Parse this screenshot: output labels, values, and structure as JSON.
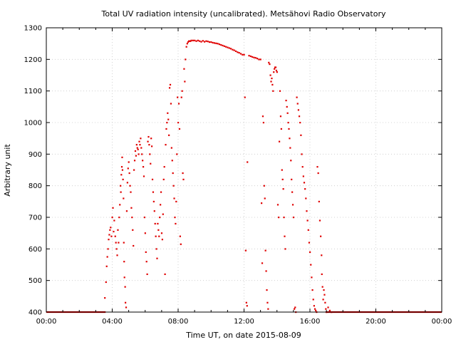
{
  "chart_data": {
    "type": "scatter",
    "title": "Total UV radiation intensity (uncalibrated). Metsähovi Radio Observatory",
    "xlabel": "Time UT, on date 2015-08-09",
    "ylabel": "Arbitrary unit",
    "x_unit": "hours UT",
    "xlim": [
      0,
      24
    ],
    "ylim": [
      400,
      1300
    ],
    "x_ticks": [
      {
        "value": 0,
        "label": "00:00"
      },
      {
        "value": 4,
        "label": "04:00"
      },
      {
        "value": 8,
        "label": "08:00"
      },
      {
        "value": 12,
        "label": "12:00"
      },
      {
        "value": 16,
        "label": "16:00"
      },
      {
        "value": 20,
        "label": "20:00"
      },
      {
        "value": 24,
        "label": "00:00"
      }
    ],
    "y_ticks": [
      {
        "value": 400,
        "label": "400"
      },
      {
        "value": 500,
        "label": "500"
      },
      {
        "value": 600,
        "label": "600"
      },
      {
        "value": 700,
        "label": "700"
      },
      {
        "value": 800,
        "label": "800"
      },
      {
        "value": 900,
        "label": "900"
      },
      {
        "value": 1000,
        "label": "1000"
      },
      {
        "value": 1100,
        "label": "1100"
      },
      {
        "value": 1200,
        "label": "1200"
      },
      {
        "value": 1300,
        "label": "1300"
      }
    ],
    "grid": true,
    "legend": "none",
    "marker_color": "#e00000",
    "series": [
      {
        "baseline_segments": [
          [
            0,
            3.6,
            400
          ],
          [
            16.95,
            24,
            400
          ]
        ],
        "points": [
          [
            3.55,
            445
          ],
          [
            3.62,
            495
          ],
          [
            3.66,
            545
          ],
          [
            3.7,
            575
          ],
          [
            3.74,
            600
          ],
          [
            3.78,
            630
          ],
          [
            3.82,
            645
          ],
          [
            3.86,
            660
          ],
          [
            3.9,
            668
          ],
          [
            3.95,
            640
          ],
          [
            4.0,
            700
          ],
          [
            4.04,
            730
          ],
          [
            4.08,
            655
          ],
          [
            4.12,
            690
          ],
          [
            4.18,
            640
          ],
          [
            4.22,
            620
          ],
          [
            4.26,
            600
          ],
          [
            4.3,
            580
          ],
          [
            4.34,
            660
          ],
          [
            4.38,
            620
          ],
          [
            4.42,
            700
          ],
          [
            4.46,
            740
          ],
          [
            4.5,
            800
          ],
          [
            4.52,
            780
          ],
          [
            4.55,
            835
          ],
          [
            4.58,
            860
          ],
          [
            4.6,
            890
          ],
          [
            4.62,
            850
          ],
          [
            4.65,
            820
          ],
          [
            4.68,
            760
          ],
          [
            4.7,
            620
          ],
          [
            4.72,
            560
          ],
          [
            4.74,
            510
          ],
          [
            4.78,
            480
          ],
          [
            4.8,
            430
          ],
          [
            4.84,
            415
          ],
          [
            4.88,
            720
          ],
          [
            4.92,
            810
          ],
          [
            4.96,
            855
          ],
          [
            5.0,
            875
          ],
          [
            5.04,
            840
          ],
          [
            5.08,
            800
          ],
          [
            5.12,
            780
          ],
          [
            5.16,
            730
          ],
          [
            5.2,
            700
          ],
          [
            5.24,
            660
          ],
          [
            5.28,
            610
          ],
          [
            5.32,
            850
          ],
          [
            5.36,
            880
          ],
          [
            5.4,
            910
          ],
          [
            5.44,
            895
          ],
          [
            5.48,
            930
          ],
          [
            5.52,
            920
          ],
          [
            5.56,
            915
          ],
          [
            5.6,
            900
          ],
          [
            5.64,
            940
          ],
          [
            5.68,
            930
          ],
          [
            5.72,
            950
          ],
          [
            5.76,
            920
          ],
          [
            5.8,
            900
          ],
          [
            5.84,
            880
          ],
          [
            5.88,
            860
          ],
          [
            5.92,
            830
          ],
          [
            5.96,
            700
          ],
          [
            6.0,
            650
          ],
          [
            6.04,
            590
          ],
          [
            6.08,
            560
          ],
          [
            6.12,
            520
          ],
          [
            6.16,
            940
          ],
          [
            6.2,
            955
          ],
          [
            6.24,
            930
          ],
          [
            6.28,
            900
          ],
          [
            6.32,
            870
          ],
          [
            6.36,
            950
          ],
          [
            6.4,
            925
          ],
          [
            6.44,
            820
          ],
          [
            6.48,
            780
          ],
          [
            6.52,
            750
          ],
          [
            6.56,
            720
          ],
          [
            6.6,
            680
          ],
          [
            6.64,
            640
          ],
          [
            6.68,
            600
          ],
          [
            6.72,
            570
          ],
          [
            6.76,
            680
          ],
          [
            6.8,
            660
          ],
          [
            6.84,
            640
          ],
          [
            6.88,
            700
          ],
          [
            6.92,
            740
          ],
          [
            6.96,
            780
          ],
          [
            7.0,
            650
          ],
          [
            7.04,
            630
          ],
          [
            7.08,
            710
          ],
          [
            7.12,
            820
          ],
          [
            7.16,
            860
          ],
          [
            7.2,
            520
          ],
          [
            7.24,
            930
          ],
          [
            7.28,
            980
          ],
          [
            7.32,
            1000
          ],
          [
            7.36,
            1030
          ],
          [
            7.4,
            1010
          ],
          [
            7.44,
            960
          ],
          [
            7.48,
            1110
          ],
          [
            7.52,
            1120
          ],
          [
            7.56,
            1060
          ],
          [
            7.6,
            920
          ],
          [
            7.64,
            880
          ],
          [
            7.68,
            840
          ],
          [
            7.72,
            800
          ],
          [
            7.76,
            760
          ],
          [
            7.8,
            700
          ],
          [
            7.84,
            680
          ],
          [
            7.88,
            750
          ],
          [
            7.92,
            900
          ],
          [
            7.96,
            1080
          ],
          [
            8.0,
            1000
          ],
          [
            8.04,
            1060
          ],
          [
            8.08,
            980
          ],
          [
            8.12,
            640
          ],
          [
            8.16,
            615
          ],
          [
            8.2,
            1080
          ],
          [
            8.24,
            1100
          ],
          [
            8.28,
            840
          ],
          [
            8.32,
            820
          ],
          [
            8.36,
            1170
          ],
          [
            8.4,
            1130
          ],
          [
            8.44,
            1200
          ],
          [
            8.5,
            1240
          ],
          [
            8.55,
            1250
          ],
          [
            8.6,
            1255
          ],
          [
            8.65,
            1258
          ],
          [
            8.7,
            1258
          ],
          [
            8.75,
            1258
          ],
          [
            8.8,
            1260
          ],
          [
            8.9,
            1260
          ],
          [
            9.0,
            1260
          ],
          [
            9.1,
            1258
          ],
          [
            9.2,
            1260
          ],
          [
            9.3,
            1258
          ],
          [
            9.4,
            1256
          ],
          [
            9.5,
            1259
          ],
          [
            9.6,
            1256
          ],
          [
            9.7,
            1258
          ],
          [
            9.8,
            1257
          ],
          [
            9.9,
            1255
          ],
          [
            10.0,
            1255
          ],
          [
            10.1,
            1253
          ],
          [
            10.2,
            1252
          ],
          [
            10.3,
            1251
          ],
          [
            10.4,
            1250
          ],
          [
            10.5,
            1248
          ],
          [
            10.6,
            1246
          ],
          [
            10.7,
            1244
          ],
          [
            10.8,
            1242
          ],
          [
            10.9,
            1240
          ],
          [
            11.0,
            1238
          ],
          [
            11.1,
            1236
          ],
          [
            11.2,
            1234
          ],
          [
            11.3,
            1231
          ],
          [
            11.4,
            1229
          ],
          [
            11.5,
            1226
          ],
          [
            11.6,
            1223
          ],
          [
            11.7,
            1221
          ],
          [
            11.8,
            1218
          ],
          [
            11.9,
            1215
          ],
          [
            12.0,
            1215
          ],
          [
            12.05,
            1080
          ],
          [
            12.1,
            595
          ],
          [
            12.14,
            430
          ],
          [
            12.18,
            420
          ],
          [
            12.2,
            875
          ],
          [
            12.3,
            1212
          ],
          [
            12.4,
            1210
          ],
          [
            12.5,
            1208
          ],
          [
            12.6,
            1206
          ],
          [
            12.7,
            1205
          ],
          [
            12.8,
            1203
          ],
          [
            12.9,
            1200
          ],
          [
            13.0,
            1200
          ],
          [
            13.06,
            745
          ],
          [
            13.1,
            555
          ],
          [
            13.14,
            1020
          ],
          [
            13.18,
            1000
          ],
          [
            13.22,
            800
          ],
          [
            13.26,
            760
          ],
          [
            13.3,
            595
          ],
          [
            13.34,
            530
          ],
          [
            13.38,
            470
          ],
          [
            13.42,
            430
          ],
          [
            13.46,
            410
          ],
          [
            13.5,
            1190
          ],
          [
            13.55,
            1185
          ],
          [
            13.6,
            1150
          ],
          [
            13.64,
            1130
          ],
          [
            13.68,
            1140
          ],
          [
            13.72,
            1120
          ],
          [
            13.76,
            1100
          ],
          [
            13.8,
            1160
          ],
          [
            13.84,
            1170
          ],
          [
            13.88,
            1175
          ],
          [
            13.92,
            1175
          ],
          [
            13.96,
            1165
          ],
          [
            14.0,
            1160
          ],
          [
            14.05,
            740
          ],
          [
            14.1,
            700
          ],
          [
            14.14,
            940
          ],
          [
            14.18,
            1100
          ],
          [
            14.22,
            1020
          ],
          [
            14.26,
            980
          ],
          [
            14.3,
            850
          ],
          [
            14.34,
            820
          ],
          [
            14.38,
            790
          ],
          [
            14.42,
            700
          ],
          [
            14.46,
            640
          ],
          [
            14.5,
            600
          ],
          [
            14.55,
            1070
          ],
          [
            14.6,
            1050
          ],
          [
            14.64,
            1030
          ],
          [
            14.68,
            1000
          ],
          [
            14.72,
            980
          ],
          [
            14.76,
            950
          ],
          [
            14.8,
            920
          ],
          [
            14.84,
            880
          ],
          [
            14.88,
            820
          ],
          [
            14.92,
            780
          ],
          [
            14.96,
            740
          ],
          [
            15.0,
            700
          ],
          [
            15.05,
            410
          ],
          [
            15.1,
            415
          ],
          [
            15.14,
            400
          ],
          [
            15.2,
            1080
          ],
          [
            15.25,
            1060
          ],
          [
            15.3,
            1040
          ],
          [
            15.35,
            1020
          ],
          [
            15.4,
            1000
          ],
          [
            15.45,
            960
          ],
          [
            15.5,
            900
          ],
          [
            15.55,
            860
          ],
          [
            15.6,
            830
          ],
          [
            15.65,
            810
          ],
          [
            15.7,
            790
          ],
          [
            15.75,
            760
          ],
          [
            15.8,
            720
          ],
          [
            15.85,
            690
          ],
          [
            15.9,
            660
          ],
          [
            15.95,
            620
          ],
          [
            16.0,
            590
          ],
          [
            16.05,
            550
          ],
          [
            16.1,
            510
          ],
          [
            16.15,
            470
          ],
          [
            16.2,
            440
          ],
          [
            16.25,
            420
          ],
          [
            16.3,
            410
          ],
          [
            16.35,
            405
          ],
          [
            16.4,
            400
          ],
          [
            16.45,
            860
          ],
          [
            16.5,
            840
          ],
          [
            16.55,
            750
          ],
          [
            16.6,
            690
          ],
          [
            16.65,
            640
          ],
          [
            16.7,
            580
          ],
          [
            16.72,
            520
          ],
          [
            16.76,
            480
          ],
          [
            16.8,
            440
          ],
          [
            16.84,
            470
          ],
          [
            16.88,
            455
          ],
          [
            16.92,
            430
          ],
          [
            16.96,
            410
          ],
          [
            17.0,
            400
          ],
          [
            17.1,
            415
          ],
          [
            17.2,
            405
          ],
          [
            17.3,
            400
          ]
        ]
      }
    ]
  }
}
